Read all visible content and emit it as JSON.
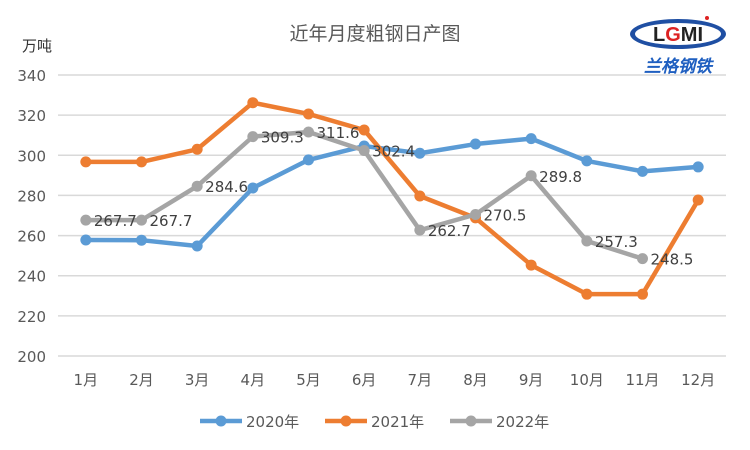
{
  "chart_data": {
    "type": "line",
    "title": "近年月度粗钢日产图",
    "ylabel": "万吨",
    "xlabel": "",
    "ylim": [
      200,
      340
    ],
    "yticks": [
      200,
      220,
      240,
      260,
      280,
      300,
      320,
      340
    ],
    "grid": true,
    "legend_position": "bottom",
    "categories": [
      "1月",
      "2月",
      "3月",
      "4月",
      "5月",
      "6月",
      "7月",
      "8月",
      "9月",
      "10月",
      "11月",
      "12月"
    ],
    "series": [
      {
        "name": "2020年",
        "color": "#5b9bd5",
        "values": [
          257.8,
          257.7,
          254.8,
          283.7,
          297.7,
          304.6,
          301.0,
          305.6,
          308.3,
          297.2,
          292.0,
          294.2
        ],
        "show_labels": false
      },
      {
        "name": "2021年",
        "color": "#ed7d31",
        "values": [
          296.7,
          296.7,
          303.0,
          326.2,
          320.6,
          312.6,
          279.7,
          268.8,
          245.3,
          230.8,
          230.8,
          277.7
        ],
        "show_labels": false
      },
      {
        "name": "2022年",
        "color": "#a5a5a5",
        "values": [
          267.7,
          267.7,
          284.6,
          309.3,
          311.6,
          302.4,
          262.7,
          270.5,
          289.8,
          257.3,
          248.5,
          null
        ],
        "show_labels": true
      }
    ]
  },
  "logo": {
    "text": "LGMI",
    "subtitle": "兰格钢铁"
  }
}
